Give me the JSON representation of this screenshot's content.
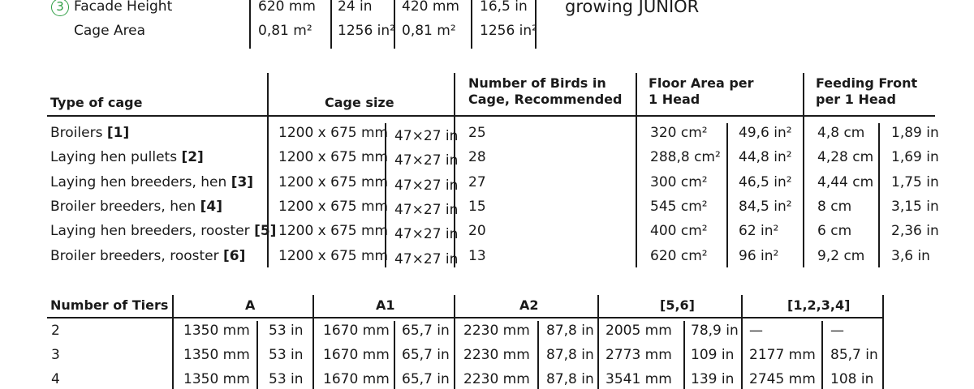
{
  "top": {
    "circle_num": "3",
    "rows": [
      {
        "label": "Facade Height",
        "v1": "620 mm",
        "v2": "24 in",
        "v3": "420 mm",
        "v4": "16,5 in"
      },
      {
        "label": "Cage Area",
        "v1": "0,81 m²",
        "v2": "1256 in²",
        "v3": "0,81 m²",
        "v4": "1256 in²"
      }
    ],
    "brand": "growing JUNIOR"
  },
  "cage_table": {
    "headers": {
      "type": "Type of cage",
      "size": "Cage size",
      "birds_1": "Number of Birds in",
      "birds_2": "Cage, Recommended",
      "floor_1": "Floor Area per",
      "floor_2": "1 Head",
      "feed_1": "Feeding Front",
      "feed_2": "per 1 Head"
    },
    "rows": [
      {
        "type": "Broilers",
        "ref": "[1]",
        "mm": "1200 x 675 mm",
        "in": "47×27 in",
        "birds": "25",
        "cm2": "320 cm²",
        "in2": "49,6 in²",
        "cm": "4,8 cm",
        "inch": "1,89 in"
      },
      {
        "type": "Laying hen pullets",
        "ref": "[2]",
        "mm": "1200 x 675 mm",
        "in": "47×27 in",
        "birds": "28",
        "cm2": "288,8 cm²",
        "in2": "44,8 in²",
        "cm": "4,28 cm",
        "inch": "1,69 in"
      },
      {
        "type": "Laying hen breeders, hen",
        "ref": "[3]",
        "mm": "1200 x 675 mm",
        "in": "47×27 in",
        "birds": "27",
        "cm2": "300 cm²",
        "in2": "46,5 in²",
        "cm": "4,44 cm",
        "inch": "1,75 in"
      },
      {
        "type": "Broiler breeders, hen",
        "ref": "[4]",
        "mm": "1200 x 675 mm",
        "in": "47×27 in",
        "birds": "15",
        "cm2": "545 cm²",
        "in2": "84,5 in²",
        "cm": "8 cm",
        "inch": "3,15 in"
      },
      {
        "type": "Laying hen breeders, rooster",
        "ref": "[5]",
        "mm": "1200 x 675 mm",
        "in": "47×27 in",
        "birds": "20",
        "cm2": "400 cm²",
        "in2": "62 in²",
        "cm": "6 cm",
        "inch": "2,36 in"
      },
      {
        "type": "Broiler breeders, rooster",
        "ref": "[6]",
        "mm": "1200 x 675 mm",
        "in": "47×27 in",
        "birds": "13",
        "cm2": "620 cm²",
        "in2": "96 in²",
        "cm": "9,2 cm",
        "inch": "3,6 in"
      }
    ]
  },
  "tier_table": {
    "headers": {
      "tiers": "Number of Tiers",
      "a": "A",
      "a1": "A1",
      "a2": "A2",
      "g56": "[5,6]",
      "g1234": "[1,2,3,4]"
    },
    "rows": [
      {
        "n": "2",
        "c": [
          "1350 mm",
          "53 in",
          "1670 mm",
          "65,7 in",
          "2230 mm",
          "87,8 in",
          "2005 mm",
          "78,9 in",
          "—",
          "—"
        ]
      },
      {
        "n": "3",
        "c": [
          "1350 mm",
          "53 in",
          "1670 mm",
          "65,7 in",
          "2230 mm",
          "87,8 in",
          "2773 mm",
          "109 in",
          "2177 mm",
          "85,7 in"
        ]
      },
      {
        "n": "4",
        "c": [
          "1350 mm",
          "53 in",
          "1670 mm",
          "65,7 in",
          "2230 mm",
          "87,8 in",
          "3541 mm",
          "139 in",
          "2745 mm",
          "108 in"
        ]
      }
    ]
  }
}
